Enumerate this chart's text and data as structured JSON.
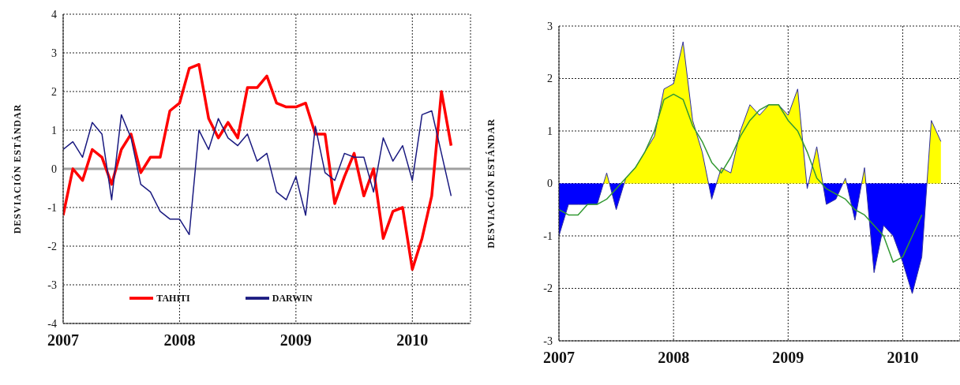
{
  "chart_data": [
    {
      "type": "line",
      "ylabel": "DESVIACIÓN ESTÁNDAR",
      "x": [
        "2007-01",
        "2007-02",
        "2007-03",
        "2007-04",
        "2007-05",
        "2007-06",
        "2007-07",
        "2007-08",
        "2007-09",
        "2007-10",
        "2007-11",
        "2007-12",
        "2008-01",
        "2008-02",
        "2008-03",
        "2008-04",
        "2008-05",
        "2008-06",
        "2008-07",
        "2008-08",
        "2008-09",
        "2008-10",
        "2008-11",
        "2008-12",
        "2009-01",
        "2009-02",
        "2009-03",
        "2009-04",
        "2009-05",
        "2009-06",
        "2009-07",
        "2009-08",
        "2009-09",
        "2009-10",
        "2009-11",
        "2009-12",
        "2010-01",
        "2010-02",
        "2010-03",
        "2010-04",
        "2010-05"
      ],
      "series": [
        {
          "name": "TAHITI",
          "color": "#ff0000",
          "values": [
            -1.2,
            0.0,
            -0.3,
            0.5,
            0.3,
            -0.4,
            0.5,
            0.9,
            -0.1,
            0.3,
            0.3,
            1.5,
            1.7,
            2.6,
            2.7,
            1.3,
            0.8,
            1.2,
            0.8,
            2.1,
            2.1,
            2.4,
            1.7,
            1.6,
            1.6,
            1.7,
            0.9,
            0.9,
            -0.9,
            -0.2,
            0.4,
            -0.7,
            0.0,
            -1.8,
            -1.1,
            -1.0,
            -2.6,
            -1.8,
            -0.7,
            2.0,
            0.6
          ]
        },
        {
          "name": "DARWIN",
          "color": "#1a1a80",
          "values": [
            0.5,
            0.7,
            0.3,
            1.2,
            0.9,
            -0.8,
            1.4,
            0.8,
            -0.4,
            -0.6,
            -1.1,
            -1.3,
            -1.3,
            -1.7,
            1.0,
            0.5,
            1.3,
            0.8,
            0.6,
            0.9,
            0.2,
            0.4,
            -0.6,
            -0.8,
            -0.2,
            -1.2,
            1.1,
            -0.1,
            -0.3,
            0.4,
            0.3,
            0.3,
            -0.6,
            0.8,
            0.2,
            0.6,
            -0.3,
            1.4,
            1.5,
            0.4,
            -0.7
          ]
        }
      ],
      "xlim": [
        "2007",
        "2010-07"
      ],
      "xticks": [
        "2007",
        "2008",
        "2009",
        "2010"
      ],
      "ylim": [
        -4,
        4
      ],
      "yticks": [
        -4,
        -3,
        -2,
        -1,
        0,
        1,
        2,
        3,
        4
      ],
      "grid": true,
      "legend": "bottom",
      "line_style": "solid",
      "ref_lines": [
        {
          "axis": "y",
          "value": 0,
          "color": "#a0a0a0"
        }
      ]
    },
    {
      "type": "area",
      "ylabel": "DESVIACIÓN ESTÁNDAR",
      "x": [
        "2007-01",
        "2007-02",
        "2007-03",
        "2007-04",
        "2007-05",
        "2007-06",
        "2007-07",
        "2007-08",
        "2007-09",
        "2007-10",
        "2007-11",
        "2007-12",
        "2008-01",
        "2008-02",
        "2008-03",
        "2008-04",
        "2008-05",
        "2008-06",
        "2008-07",
        "2008-08",
        "2008-09",
        "2008-10",
        "2008-11",
        "2008-12",
        "2009-01",
        "2009-02",
        "2009-03",
        "2009-04",
        "2009-05",
        "2009-06",
        "2009-07",
        "2009-08",
        "2009-09",
        "2009-10",
        "2009-11",
        "2009-12",
        "2010-01",
        "2010-02",
        "2010-03",
        "2010-04",
        "2010-05"
      ],
      "series": [
        {
          "color": "#3030a0",
          "colors": [
            "#0000ff",
            "#0000ff",
            "#0000ff",
            "#0000ff",
            "#0000ff",
            "#ffff00",
            "#0000ff",
            "#ffff00",
            "#ffff00",
            "#ffff00",
            "#ffff00",
            "#ffff00",
            "#ffff00",
            "#ffff00",
            "#ffff00",
            "#ffff00",
            "#0000ff",
            "#ffff00",
            "#ffff00",
            "#ffff00",
            "#ffff00",
            "#ffff00",
            "#ffff00",
            "#ffff00",
            "#ffff00",
            "#ffff00",
            "#0000ff",
            "#ffff00",
            "#0000ff",
            "#0000ff",
            "#ffff00",
            "#0000ff",
            "#ffff00",
            "#0000ff",
            "#0000ff",
            "#0000ff",
            "#0000ff",
            "#0000ff",
            "#0000ff",
            "#ffff00",
            "#ffff00"
          ],
          "values": [
            -1.0,
            -0.4,
            -0.4,
            -0.4,
            -0.4,
            0.2,
            -0.5,
            0.1,
            0.3,
            0.6,
            0.9,
            1.8,
            1.9,
            2.7,
            1.2,
            0.6,
            -0.3,
            0.3,
            0.2,
            1.0,
            1.5,
            1.3,
            1.5,
            1.5,
            1.3,
            1.8,
            -0.1,
            0.7,
            -0.4,
            -0.3,
            0.1,
            -0.7,
            0.3,
            -1.7,
            -0.8,
            -1.0,
            -1.5,
            -2.1,
            -1.4,
            1.2,
            0.8
          ]
        },
        {
          "type": "line",
          "color": "#339933",
          "values": [
            -0.5,
            -0.6,
            -0.6,
            -0.4,
            -0.4,
            -0.3,
            -0.1,
            0.1,
            0.3,
            0.6,
            1.0,
            1.6,
            1.7,
            1.6,
            1.1,
            0.8,
            0.4,
            0.2,
            0.5,
            0.9,
            1.2,
            1.4,
            1.5,
            1.5,
            1.2,
            1.0,
            0.6,
            0.1,
            -0.1,
            -0.2,
            -0.3,
            -0.5,
            -0.6,
            -0.8,
            -1.0,
            -1.5,
            -1.4,
            -1.0,
            -0.6,
            null,
            null
          ]
        }
      ],
      "xlim": [
        "2007",
        "2010-07"
      ],
      "xticks": [
        "2007",
        "2008",
        "2009",
        "2010"
      ],
      "ylim": [
        -3,
        3
      ],
      "yticks": [
        -3,
        -2,
        -1,
        0,
        1,
        2,
        3
      ],
      "grid": true,
      "line_style": "solid"
    }
  ]
}
